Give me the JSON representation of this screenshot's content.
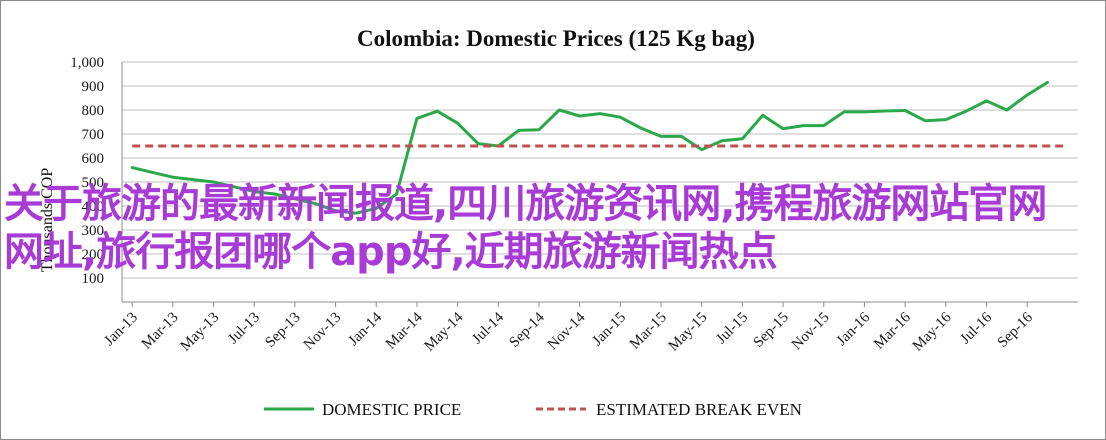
{
  "overlay_text": "关于旅游的最新新闻报道,四川旅游资讯网,携程旅游网站官网网址,旅行报团哪个app好,近期旅游新闻热点",
  "chart_data": {
    "type": "line",
    "title": "Colombia:  Domestic Prices (125 Kg bag)",
    "xlabel": "",
    "ylabel": "Thousands COP",
    "ylim": [
      0,
      1000
    ],
    "yticks": [
      100,
      200,
      300,
      400,
      500,
      600,
      700,
      800,
      900,
      1000
    ],
    "ytick_labels": [
      "100",
      "200",
      "300",
      "400",
      "500",
      "600",
      "700",
      "800",
      "900",
      "1,000"
    ],
    "grid": true,
    "legend_placement": "bottom",
    "x_tick_labels": [
      "Jan-13",
      "Mar-13",
      "May-13",
      "Jul-13",
      "Sep-13",
      "Nov-13",
      "Jan-14",
      "Mar-14",
      "May-14",
      "Jul-14",
      "Sep-14",
      "Nov-14",
      "Jan-15",
      "Mar-15",
      "May-15",
      "Jul-15",
      "Sep-15",
      "Nov-15",
      "Jan-16",
      "Mar-16",
      "May-16",
      "Jul-16",
      "Sep-16"
    ],
    "x": [
      "Jan-13",
      "Feb-13",
      "Mar-13",
      "Apr-13",
      "May-13",
      "Jun-13",
      "Jul-13",
      "Aug-13",
      "Sep-13",
      "Oct-13",
      "Nov-13",
      "Dec-13",
      "Jan-14",
      "Feb-14",
      "Mar-14",
      "Apr-14",
      "May-14",
      "Jun-14",
      "Jul-14",
      "Aug-14",
      "Sep-14",
      "Oct-14",
      "Nov-14",
      "Dec-14",
      "Jan-15",
      "Feb-15",
      "Mar-15",
      "Apr-15",
      "May-15",
      "Jun-15",
      "Jul-15",
      "Aug-15",
      "Sep-15",
      "Oct-15",
      "Nov-15",
      "Dec-15",
      "Jan-16",
      "Feb-16",
      "Mar-16",
      "Apr-16",
      "May-16",
      "Jun-16",
      "Jul-16",
      "Aug-16",
      "Sep-16",
      "Oct-16",
      "Nov-16"
    ],
    "series": [
      {
        "name": "DOMESTIC PRICE",
        "color": "#2aa84a",
        "style": "solid",
        "values": [
          560,
          540,
          520,
          510,
          500,
          480,
          460,
          450,
          430,
          410,
          380,
          370,
          390,
          450,
          765,
          795,
          745,
          660,
          650,
          715,
          718,
          800,
          775,
          785,
          770,
          725,
          690,
          690,
          635,
          672,
          680,
          778,
          722,
          735,
          735,
          792,
          792,
          796,
          798,
          755,
          760,
          795,
          838,
          800,
          862,
          915,
          null
        ]
      },
      {
        "name": "ESTIMATED BREAK EVEN",
        "color": "#c0504d",
        "style": "dashed",
        "values": [
          650,
          650,
          650,
          650,
          650,
          650,
          650,
          650,
          650,
          650,
          650,
          650,
          650,
          650,
          650,
          650,
          650,
          650,
          650,
          650,
          650,
          650,
          650,
          650,
          650,
          650,
          650,
          650,
          650,
          650,
          650,
          650,
          650,
          650,
          650,
          650,
          650,
          650,
          650,
          650,
          650,
          650,
          650,
          650,
          650,
          650,
          650
        ]
      }
    ]
  }
}
